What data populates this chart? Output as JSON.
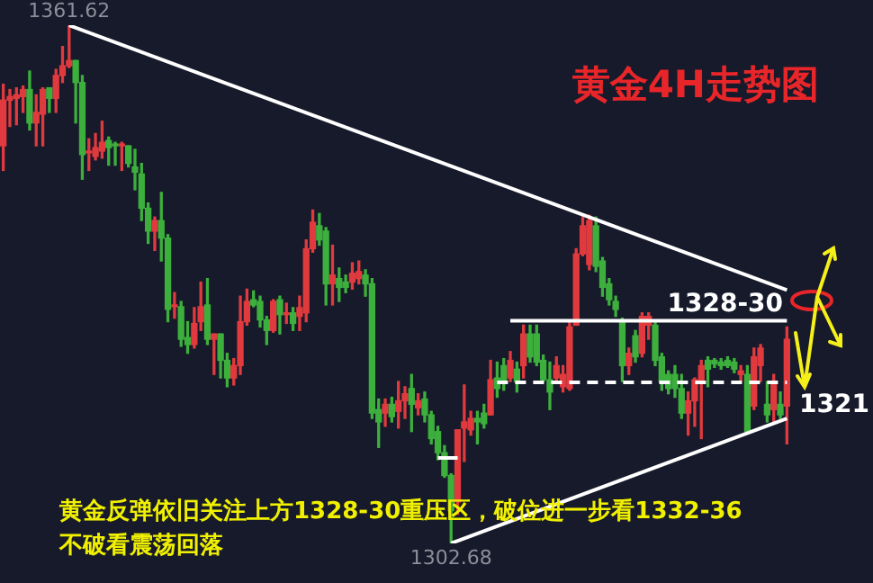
{
  "chart_data": {
    "type": "candlestick",
    "title": "黄金4H走势图",
    "categories": [
      null,
      null,
      null,
      null,
      null,
      null,
      null,
      null,
      null,
      null,
      null,
      null,
      null,
      null,
      null,
      null,
      null,
      null,
      null,
      null,
      null,
      null,
      null,
      null,
      null,
      null,
      null,
      null,
      null,
      null,
      null,
      null,
      null,
      null,
      null,
      null,
      null,
      null,
      null,
      null,
      null,
      null,
      null,
      null,
      null,
      null,
      null,
      null,
      null,
      null,
      null,
      null,
      null,
      null,
      null,
      null,
      null,
      null,
      null,
      null,
      null,
      null,
      null,
      null,
      null,
      null,
      null,
      null,
      null,
      null,
      null,
      null,
      null,
      null,
      null,
      null,
      null,
      null,
      null,
      null,
      null,
      null,
      null,
      null,
      null,
      null,
      null,
      null,
      null,
      null,
      null,
      null,
      null,
      null,
      null,
      null,
      null,
      null,
      null,
      null,
      null,
      null,
      null,
      null,
      null,
      null,
      null,
      null,
      null,
      null,
      null,
      null,
      null,
      null,
      null,
      null,
      null,
      null,
      null,
      null
    ],
    "ohlc": [
      [
        1347.9,
        1354.9,
        1345.1,
        1353.1
      ],
      [
        1353.1,
        1354.3,
        1350.1,
        1353.5
      ],
      [
        1353.3,
        1354.5,
        1350.3,
        1353.7
      ],
      [
        1353.5,
        1354.7,
        1351.7,
        1354.3
      ],
      [
        1354.3,
        1356.4,
        1349.7,
        1350.5
      ],
      [
        1350.5,
        1353.7,
        1347.9,
        1351.7
      ],
      [
        1351.5,
        1354.5,
        1347.9,
        1354.3
      ],
      [
        1354.5,
        1354.5,
        1351.7,
        1353.3
      ],
      [
        1353.3,
        1356.6,
        1351.7,
        1355.9
      ],
      [
        1355.9,
        1359.2,
        1355.1,
        1357.0
      ],
      [
        1357.0,
        1361.62,
        1356.8,
        1357.6
      ],
      [
        1357.6,
        1357.6,
        1350.5,
        1355.1
      ],
      [
        1355.1,
        1355.9,
        1344.1,
        1346.9
      ],
      [
        1347.1,
        1348.7,
        1345.1,
        1347.3
      ],
      [
        1346.7,
        1349.3,
        1346.3,
        1347.7
      ],
      [
        1347.3,
        1350.7,
        1346.5,
        1348.3
      ],
      [
        1348.5,
        1348.9,
        1345.7,
        1347.7
      ],
      [
        1348.1,
        1348.3,
        1345.7,
        1347.9
      ],
      [
        1347.9,
        1348.3,
        1345.1,
        1348.1
      ],
      [
        1347.9,
        1347.9,
        1345.5,
        1345.9
      ],
      [
        1345.5,
        1347.5,
        1342.9,
        1344.9
      ],
      [
        1344.7,
        1345.9,
        1339.4,
        1340.8
      ],
      [
        1340.8,
        1341.4,
        1336.8,
        1338.2
      ],
      [
        1338.2,
        1339.8,
        1336.0,
        1339.4
      ],
      [
        1339.4,
        1342.6,
        1334.8,
        1337.4
      ],
      [
        1337.4,
        1337.8,
        1327.9,
        1329.3
      ],
      [
        1329.6,
        1331.2,
        1328.3,
        1329.8
      ],
      [
        1329.6,
        1330.2,
        1325.1,
        1325.9
      ],
      [
        1326.1,
        1327.9,
        1324.3,
        1325.3
      ],
      [
        1325.3,
        1329.5,
        1324.9,
        1327.7
      ],
      [
        1327.9,
        1332.4,
        1326.9,
        1329.6
      ],
      [
        1329.8,
        1332.8,
        1325.3,
        1325.9
      ],
      [
        1325.9,
        1326.5,
        1321.9,
        1326.5
      ],
      [
        1326.5,
        1326.5,
        1321.5,
        1323.5
      ],
      [
        1323.5,
        1324.3,
        1320.5,
        1321.5
      ],
      [
        1321.5,
        1323.7,
        1320.7,
        1322.9
      ],
      [
        1322.9,
        1330.8,
        1321.9,
        1327.9
      ],
      [
        1327.9,
        1331.6,
        1327.5,
        1330.2
      ],
      [
        1330.4,
        1331.4,
        1329.6,
        1329.8
      ],
      [
        1330.2,
        1330.8,
        1327.3,
        1328.1
      ],
      [
        1328.1,
        1328.5,
        1325.3,
        1326.9
      ],
      [
        1326.9,
        1330.4,
        1326.7,
        1330.2
      ],
      [
        1330.4,
        1330.8,
        1326.5,
        1328.7
      ],
      [
        1328.7,
        1330.0,
        1327.7,
        1328.9
      ],
      [
        1328.9,
        1329.5,
        1326.9,
        1327.7
      ],
      [
        1328.5,
        1330.8,
        1326.9,
        1329.5
      ],
      [
        1328.9,
        1337.2,
        1327.9,
        1336.2
      ],
      [
        1336.2,
        1340.6,
        1335.8,
        1339.2
      ],
      [
        1338.8,
        1340.2,
        1336.6,
        1337.2
      ],
      [
        1338.2,
        1338.6,
        1329.8,
        1332.2
      ],
      [
        1332.2,
        1336.6,
        1329.8,
        1333.2
      ],
      [
        1332.8,
        1334.0,
        1330.2,
        1331.8
      ],
      [
        1332.4,
        1333.2,
        1331.2,
        1331.8
      ],
      [
        1332.4,
        1334.6,
        1331.6,
        1333.4
      ],
      [
        1332.8,
        1334.8,
        1332.2,
        1333.6
      ],
      [
        1333.2,
        1333.8,
        1330.8,
        1332.2
      ],
      [
        1332.2,
        1332.8,
        1316.9,
        1317.5
      ],
      [
        1317.9,
        1319.1,
        1313.6,
        1316.5
      ],
      [
        1317.5,
        1319.1,
        1316.0,
        1318.5
      ],
      [
        1318.5,
        1319.3,
        1316.5,
        1317.1
      ],
      [
        1317.7,
        1321.1,
        1315.8,
        1318.9
      ],
      [
        1318.9,
        1320.5,
        1316.9,
        1319.7
      ],
      [
        1320.3,
        1321.9,
        1315.4,
        1318.5
      ],
      [
        1318.1,
        1319.7,
        1317.3,
        1318.9
      ],
      [
        1319.1,
        1319.9,
        1316.5,
        1317.3
      ],
      [
        1317.3,
        1317.7,
        1314.0,
        1314.6
      ],
      [
        1315.4,
        1316.0,
        1312.2,
        1313.0
      ],
      [
        1313.0,
        1313.8,
        1310.2,
        1310.4
      ],
      [
        1310.4,
        1310.6,
        1302.68,
        1306.4
      ],
      [
        1307.4,
        1315.6,
        1306.0,
        1315.6
      ],
      [
        1315.8,
        1320.7,
        1312.0,
        1316.5
      ],
      [
        1315.6,
        1317.7,
        1315.0,
        1316.9
      ],
      [
        1316.9,
        1317.7,
        1314.0,
        1316.5
      ],
      [
        1317.5,
        1318.5,
        1315.8,
        1316.3
      ],
      [
        1317.3,
        1323.5,
        1317.3,
        1321.3
      ],
      [
        1321.5,
        1323.3,
        1319.3,
        1320.3
      ],
      [
        1322.9,
        1323.7,
        1320.1,
        1321.1
      ],
      [
        1321.5,
        1324.5,
        1321.1,
        1323.5
      ],
      [
        1322.5,
        1323.3,
        1319.9,
        1321.1
      ],
      [
        1322.9,
        1327.5,
        1321.5,
        1326.5
      ],
      [
        1326.5,
        1327.5,
        1323.3,
        1323.9
      ],
      [
        1326.5,
        1327.5,
        1322.9,
        1323.3
      ],
      [
        1323.5,
        1324.1,
        1321.1,
        1321.3
      ],
      [
        1321.3,
        1323.3,
        1317.9,
        1319.9
      ],
      [
        1321.5,
        1323.9,
        1321.1,
        1322.9
      ],
      [
        1320.5,
        1322.9,
        1319.9,
        1321.9
      ],
      [
        1320.3,
        1327.9,
        1320.1,
        1327.3
      ],
      [
        1327.5,
        1336.2,
        1327.5,
        1335.6
      ],
      [
        1335.6,
        1339.8,
        1335.4,
        1338.8
      ],
      [
        1334.4,
        1340.0,
        1333.8,
        1339.4
      ],
      [
        1338.8,
        1339.8,
        1333.6,
        1334.2
      ],
      [
        1334.8,
        1335.2,
        1330.8,
        1331.8
      ],
      [
        1332.2,
        1332.8,
        1329.8,
        1330.4
      ],
      [
        1330.2,
        1330.8,
        1328.5,
        1329.3
      ],
      [
        1327.9,
        1328.3,
        1321.1,
        1322.9
      ],
      [
        1322.9,
        1324.9,
        1321.9,
        1324.3
      ],
      [
        1326.3,
        1326.9,
        1323.3,
        1323.9
      ],
      [
        1324.3,
        1328.9,
        1323.9,
        1328.5
      ],
      [
        1327.5,
        1328.9,
        1325.9,
        1328.5
      ],
      [
        1327.5,
        1327.9,
        1322.9,
        1323.5
      ],
      [
        1323.9,
        1324.3,
        1320.1,
        1321.1
      ],
      [
        1321.9,
        1322.3,
        1319.7,
        1320.3
      ],
      [
        1321.9,
        1322.9,
        1319.3,
        1320.3
      ],
      [
        1320.3,
        1321.9,
        1316.9,
        1317.5
      ],
      [
        1317.5,
        1319.9,
        1315.0,
        1318.9
      ],
      [
        1318.9,
        1321.5,
        1316.0,
        1321.3
      ],
      [
        1321.1,
        1323.5,
        1314.6,
        1322.9
      ],
      [
        1323.5,
        1323.9,
        1320.5,
        1322.5
      ],
      [
        1323.5,
        1323.7,
        1322.7,
        1323.1
      ],
      [
        1323.3,
        1323.7,
        1322.5,
        1322.9
      ],
      [
        1323.5,
        1323.9,
        1322.7,
        1322.9
      ],
      [
        1323.3,
        1323.7,
        1322.1,
        1322.5
      ],
      [
        1321.9,
        1322.9,
        1321.1,
        1322.3
      ],
      [
        1321.9,
        1322.9,
        1315.4,
        1315.4
      ],
      [
        1318.3,
        1324.9,
        1317.9,
        1323.9
      ],
      [
        1322.9,
        1325.3,
        1321.1,
        1324.9
      ],
      [
        1318.5,
        1321.1,
        1316.5,
        1317.3
      ],
      [
        1317.9,
        1321.9,
        1316.5,
        1321.1
      ],
      [
        1318.5,
        1319.9,
        1316.9,
        1317.3
      ],
      [
        1318.3,
        1327.3,
        1314.0,
        1325.9
      ]
    ],
    "series": [
      {
        "type": "line",
        "color": "#ffffff",
        "values": [
          null,
          null,
          null,
          null,
          null,
          null,
          null,
          null,
          null,
          null,
          1361.6,
          null,
          null,
          null,
          null,
          null,
          null,
          null,
          null,
          null,
          null,
          null,
          null,
          null,
          null,
          null,
          null,
          null,
          null,
          null,
          null,
          null,
          null,
          null,
          null,
          null,
          null,
          null,
          null,
          null,
          null,
          null,
          null,
          null,
          null,
          null,
          null,
          null,
          null,
          null,
          null,
          null,
          null,
          null,
          null,
          null,
          null,
          null,
          null,
          null,
          null,
          null,
          null,
          null,
          null,
          null,
          null,
          null,
          null,
          null,
          null,
          null,
          null,
          null,
          null,
          null,
          null,
          null,
          null,
          null,
          null,
          null,
          null,
          null,
          null,
          null,
          null,
          null,
          null,
          null,
          null,
          null,
          null,
          null,
          null,
          null,
          null,
          null,
          null,
          null,
          null,
          null,
          null,
          null,
          null,
          null,
          null,
          null,
          null,
          null,
          null,
          null,
          null,
          null,
          null,
          null,
          null,
          null,
          null,
          1331.5
        ]
      },
      {
        "type": "line",
        "color": "#ffffff",
        "values": [
          null,
          null,
          null,
          null,
          null,
          null,
          null,
          null,
          null,
          null,
          null,
          null,
          null,
          null,
          null,
          null,
          null,
          null,
          null,
          null,
          null,
          null,
          null,
          null,
          null,
          null,
          null,
          null,
          null,
          null,
          null,
          null,
          null,
          null,
          null,
          null,
          null,
          null,
          null,
          null,
          null,
          null,
          null,
          null,
          null,
          null,
          null,
          null,
          null,
          null,
          null,
          null,
          null,
          null,
          null,
          null,
          null,
          null,
          null,
          null,
          null,
          null,
          null,
          null,
          null,
          null,
          null,
          null,
          1302.7,
          null,
          null,
          null,
          null,
          null,
          null,
          null,
          null,
          null,
          null,
          null,
          null,
          null,
          null,
          null,
          null,
          null,
          null,
          null,
          null,
          null,
          null,
          null,
          null,
          null,
          null,
          null,
          null,
          null,
          null,
          null,
          null,
          null,
          null,
          null,
          null,
          null,
          null,
          null,
          null,
          null,
          null,
          null,
          null,
          null,
          null,
          null,
          null,
          null,
          null,
          1316.9
        ]
      },
      {
        "type": "line",
        "color": "#ffffff",
        "values": [
          null,
          null,
          null,
          null,
          null,
          null,
          null,
          null,
          null,
          null,
          null,
          null,
          null,
          null,
          null,
          null,
          null,
          null,
          null,
          null,
          null,
          null,
          null,
          null,
          null,
          null,
          null,
          null,
          null,
          null,
          null,
          null,
          null,
          null,
          null,
          null,
          null,
          null,
          null,
          null,
          null,
          null,
          null,
          null,
          null,
          null,
          null,
          null,
          null,
          null,
          null,
          null,
          null,
          null,
          null,
          null,
          null,
          null,
          null,
          null,
          null,
          null,
          null,
          null,
          null,
          null,
          null,
          null,
          null,
          null,
          null,
          null,
          null,
          null,
          null,
          null,
          null,
          1328,
          null,
          null,
          null,
          null,
          null,
          null,
          null,
          null,
          null,
          null,
          null,
          null,
          null,
          null,
          null,
          null,
          null,
          null,
          null,
          null,
          null,
          null,
          null,
          null,
          null,
          null,
          null,
          null,
          null,
          null,
          null,
          null,
          null,
          null,
          null,
          null,
          null,
          null,
          null,
          null,
          null,
          1328
        ]
      },
      {
        "type": "line",
        "color": "#ffffff",
        "line_style": "dashed",
        "values": [
          null,
          null,
          null,
          null,
          null,
          null,
          null,
          null,
          null,
          null,
          null,
          null,
          null,
          null,
          null,
          null,
          null,
          null,
          null,
          null,
          null,
          null,
          null,
          null,
          null,
          null,
          null,
          null,
          null,
          null,
          null,
          null,
          null,
          null,
          null,
          null,
          null,
          null,
          null,
          null,
          null,
          null,
          null,
          null,
          null,
          null,
          null,
          null,
          null,
          null,
          null,
          null,
          null,
          null,
          null,
          null,
          null,
          null,
          null,
          null,
          null,
          null,
          null,
          null,
          null,
          null,
          null,
          null,
          null,
          null,
          null,
          null,
          null,
          null,
          null,
          1321,
          null,
          null,
          null,
          null,
          null,
          null,
          null,
          null,
          null,
          null,
          null,
          null,
          null,
          null,
          null,
          null,
          null,
          null,
          null,
          null,
          null,
          null,
          null,
          null,
          null,
          null,
          null,
          null,
          null,
          null,
          null,
          null,
          null,
          null,
          null,
          null,
          null,
          null,
          null,
          null,
          null,
          null,
          null,
          1321
        ]
      },
      {
        "type": "line",
        "color": "#ffffff",
        "values": [
          null,
          null,
          null,
          null,
          null,
          null,
          null,
          null,
          null,
          null,
          null,
          null,
          null,
          null,
          null,
          null,
          null,
          null,
          null,
          null,
          null,
          null,
          null,
          null,
          null,
          null,
          null,
          null,
          null,
          null,
          null,
          null,
          null,
          null,
          null,
          null,
          null,
          null,
          null,
          null,
          null,
          null,
          null,
          null,
          null,
          null,
          null,
          null,
          null,
          null,
          null,
          null,
          null,
          null,
          null,
          null,
          null,
          null,
          null,
          null,
          null,
          null,
          null,
          null,
          null,
          null,
          1312.4,
          null,
          null,
          1312.4,
          null,
          null,
          null,
          null,
          null,
          null,
          null,
          null,
          null,
          null,
          null,
          null,
          null,
          null,
          null,
          null,
          null,
          null,
          null,
          null,
          null,
          null,
          null,
          null,
          null,
          null,
          null,
          null,
          null,
          null,
          null,
          null,
          null,
          null,
          null,
          null,
          null,
          null,
          null,
          null,
          null,
          null,
          null,
          null,
          null,
          null,
          null,
          null,
          null,
          null
        ]
      }
    ],
    "annotations": [
      {
        "text": "1361.62",
        "y": 1361.62
      },
      {
        "text": "1302.68",
        "y": 1302.68
      },
      {
        "text": "1328-30",
        "y": 1328
      },
      "1321",
      "黄金反弹依旧关注上方1328-30重压区，破位进一步看1332-36",
      "不破看震荡回落"
    ],
    "tick_labels": false,
    "legend": false
  }
}
